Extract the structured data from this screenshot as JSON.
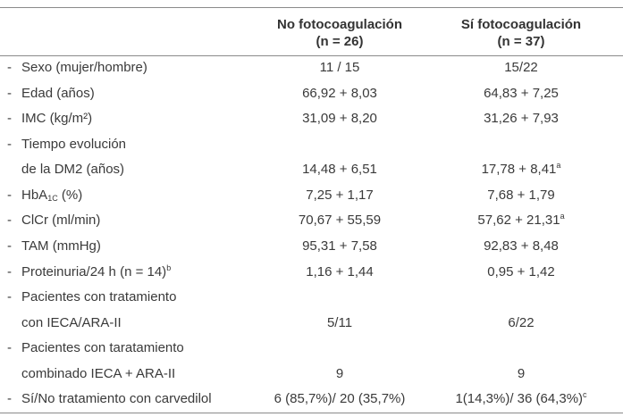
{
  "bullet": "-",
  "header": {
    "columns": [
      {
        "line1": "No fotocoagulación",
        "line2": "(n = 26)"
      },
      {
        "line1": "Sí fotocoagulación",
        "line2": "(n = 37)"
      }
    ]
  },
  "rows": [
    {
      "label": [
        "Sexo (mujer/hombre)"
      ],
      "values": [
        "11 / 15",
        "15/22"
      ]
    },
    {
      "label": [
        "Edad (años)"
      ],
      "values": [
        "66,92 + 8,03",
        "64,83 + 7,25"
      ]
    },
    {
      "label": [
        "IMC (kg/m²)"
      ],
      "values": [
        "31,09 + 8,20",
        "31,26 + 7,93"
      ]
    },
    {
      "label": [
        "Tiempo evolución",
        "de la DM2 (años)"
      ],
      "values": [
        "14,48 + 6,51",
        {
          "text": "17,78 + 8,41",
          "sup": "a"
        }
      ]
    },
    {
      "label": [
        "HbA"
      ],
      "label_sub": "1C",
      "label_end": " (%)",
      "values": [
        "7,25 + 1,17",
        "7,68 + 1,79"
      ]
    },
    {
      "label": [
        "ClCr (ml/min)"
      ],
      "values": [
        "70,67 + 55,59",
        {
          "text": "57,62 + 21,31",
          "sup": "a"
        }
      ]
    },
    {
      "label": [
        "TAM (mmHg)"
      ],
      "values": [
        "95,31 + 7,58",
        "92,83 + 8,48"
      ]
    },
    {
      "label": [
        "Proteinuria/24 h (n = 14)"
      ],
      "label_sup": "b",
      "values": [
        "1,16 + 1,44",
        "0,95 + 1,42"
      ]
    },
    {
      "label": [
        "Pacientes con tratamiento",
        "con IECA/ARA-II"
      ],
      "values": [
        "5/11",
        "6/22"
      ]
    },
    {
      "label": [
        "Pacientes con taratamiento",
        "combinado IECA + ARA-II"
      ],
      "values": [
        "9",
        "9"
      ]
    },
    {
      "label": [
        "Sí/No tratamiento con carvedilol"
      ],
      "values": [
        "6 (85,7%)/ 20 (35,7%)",
        {
          "text": "1(14,3%)/ 36 (64,3%)",
          "sup": "c"
        }
      ]
    }
  ]
}
